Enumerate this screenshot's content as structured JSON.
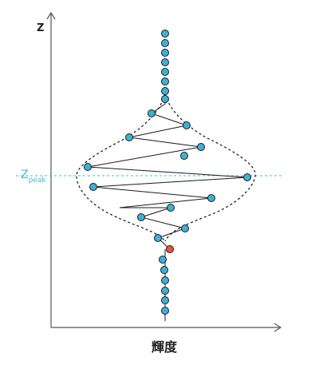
{
  "labels": {
    "z_axis": "Z",
    "x_axis": "輝度",
    "peak_main": "Z",
    "peak_sub": "peak"
  },
  "colors": {
    "dot_fill": "#3fb0d4",
    "highlight_dot_fill": "#e8553a",
    "peak_line": "#44b8d0",
    "axis": "#555555"
  }
}
